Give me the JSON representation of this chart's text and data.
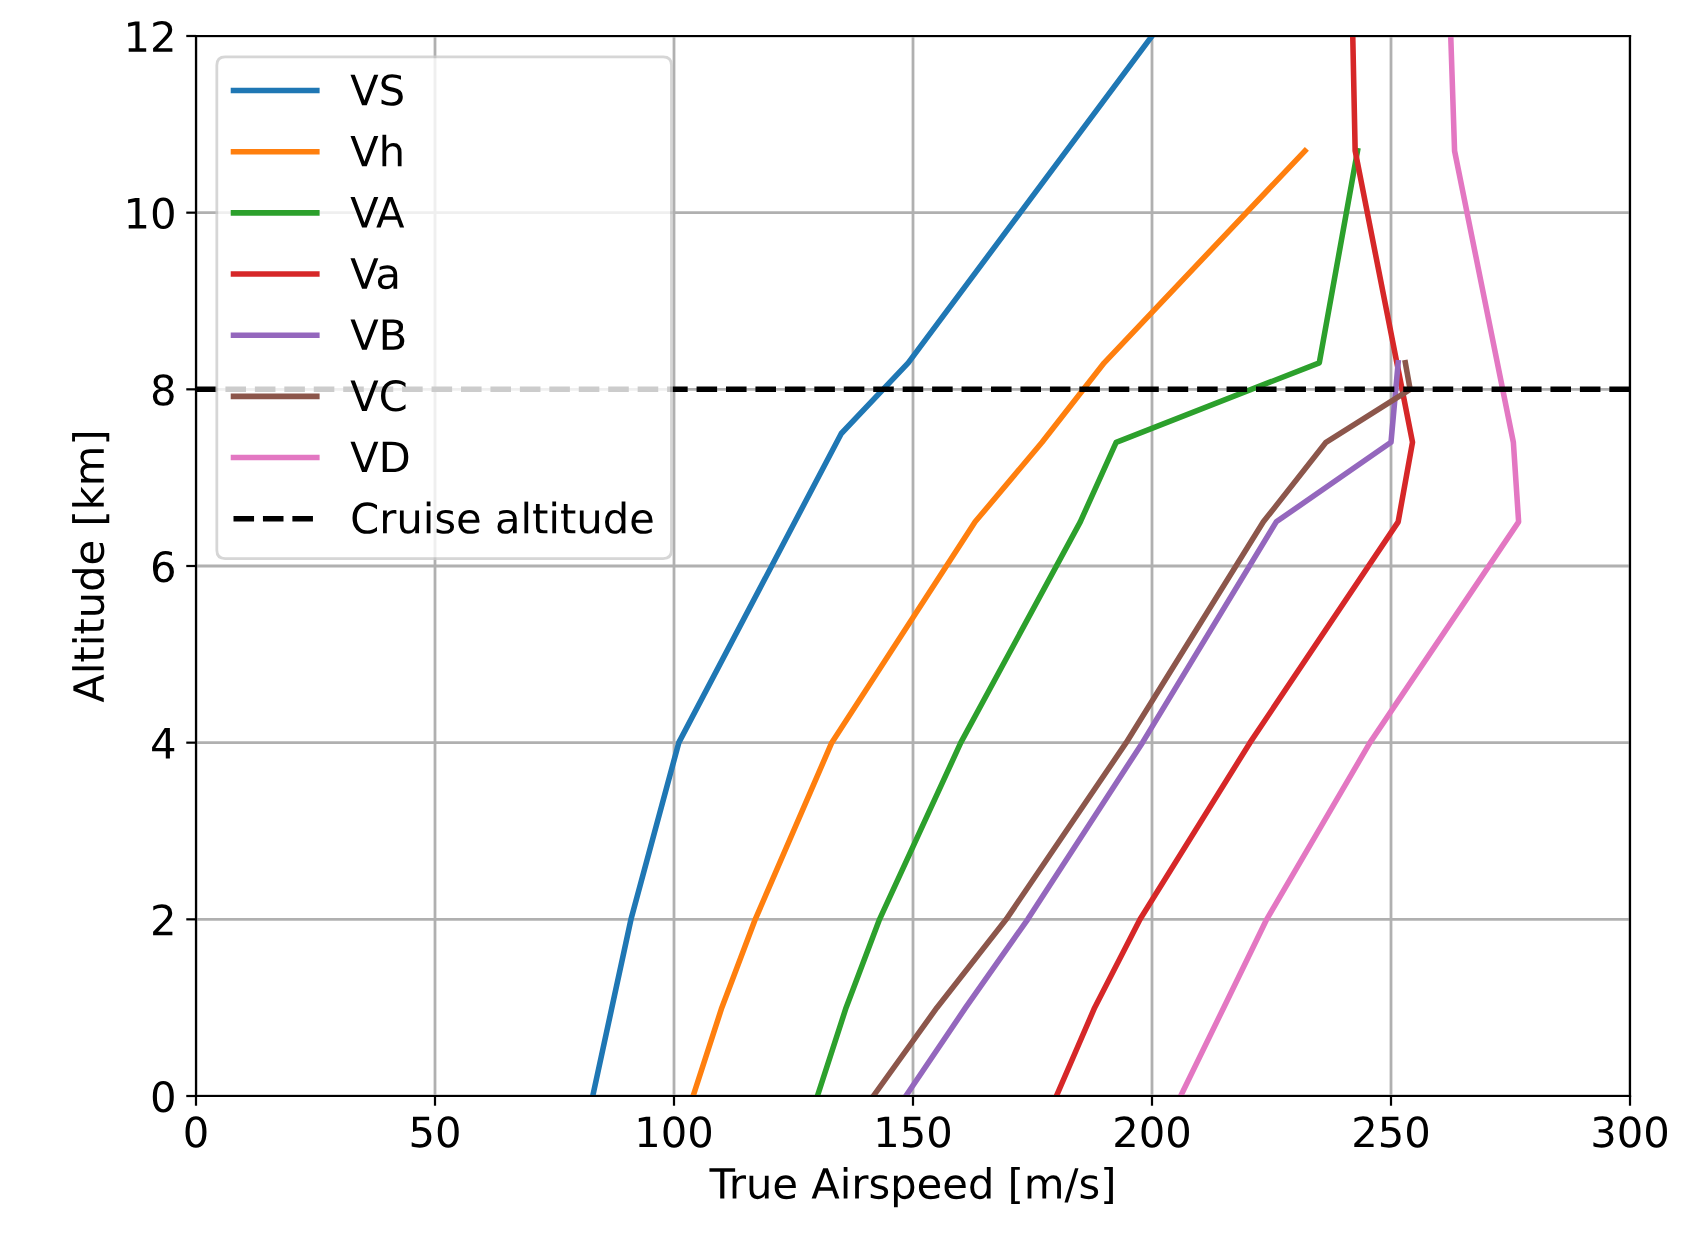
{
  "chart_data": {
    "type": "line",
    "xlabel": "True Airspeed [m/s]",
    "ylabel": "Altitude [km]",
    "xlim": [
      0,
      300
    ],
    "xticks": [
      0,
      50,
      100,
      150,
      200,
      250,
      300
    ],
    "ylim": [
      0,
      12
    ],
    "yticks": [
      0,
      2,
      4,
      6,
      8,
      10,
      12
    ],
    "grid": true,
    "legend": "top left",
    "line_style": "solid",
    "series": [
      {
        "name": "VS",
        "color": "#1f77b4",
        "x": [
          83,
          87,
          91,
          101,
          135,
          149,
          200
        ],
        "values": [
          0,
          1,
          2,
          4,
          7.5,
          8.3,
          12
        ]
      },
      {
        "name": "Vh",
        "color": "#ff7f0e",
        "x": [
          104,
          110,
          117,
          133,
          163,
          177,
          190,
          232
        ],
        "values": [
          0,
          1,
          2,
          4,
          6.5,
          7.4,
          8.3,
          10.7
        ]
      },
      {
        "name": "VA",
        "color": "#2ca02c",
        "x": [
          130,
          136,
          143,
          160,
          185,
          192.5,
          235,
          243
        ],
        "values": [
          0,
          1,
          2,
          4,
          6.5,
          7.4,
          8.3,
          10.7
        ]
      },
      {
        "name": "Va",
        "color": "#d62728",
        "x": [
          180,
          188,
          197.5,
          220.5,
          251.5,
          254.5,
          242.5,
          242
        ],
        "values": [
          0,
          1,
          2,
          4,
          6.5,
          7.4,
          10.7,
          12
        ]
      },
      {
        "name": "VB",
        "color": "#9467bd",
        "x": [
          148.5,
          161,
          174,
          198,
          226,
          250,
          251.5
        ],
        "values": [
          0,
          1,
          2,
          4,
          6.5,
          7.4,
          8.3
        ]
      },
      {
        "name": "VC",
        "color": "#8c564b",
        "x": [
          141.7,
          155,
          169.5,
          194.6,
          223.3,
          236.4,
          254,
          253
        ],
        "values": [
          0,
          1,
          2,
          4,
          6.5,
          7.4,
          8,
          8.3
        ]
      },
      {
        "name": "VD",
        "color": "#e377c2",
        "x": [
          206,
          215,
          224,
          245.6,
          276.7,
          275.6,
          263.3,
          262.5
        ],
        "values": [
          0,
          1,
          2,
          4,
          6.5,
          7.4,
          10.7,
          12
        ]
      }
    ],
    "ref_lines": [
      {
        "axis": "y",
        "value": 8,
        "label": "Cruise altitude",
        "color": "#000000",
        "line_style": "dashed"
      }
    ]
  }
}
